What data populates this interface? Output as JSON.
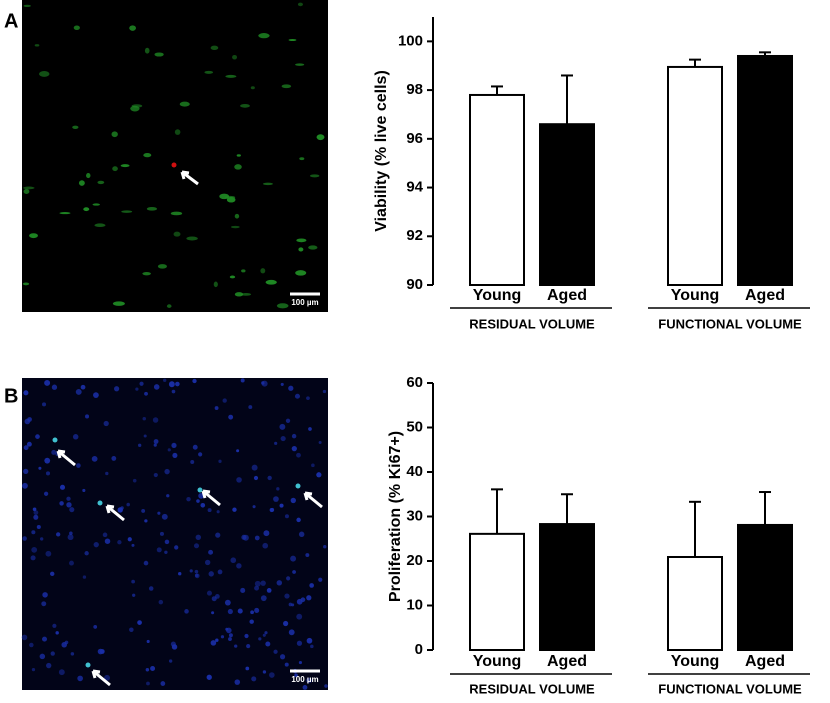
{
  "panels": [
    {
      "label": "A",
      "scale_bar": "100 µm"
    },
    {
      "label": "B",
      "scale_bar": "100 µm"
    }
  ],
  "chart_data": [
    {
      "type": "bar",
      "y_label": "Viability (% live cells)",
      "categories": [
        "RESIDUAL VOLUME",
        "FUNCTIONAL VOLUME"
      ],
      "series": [
        {
          "name": "Young",
          "color": "#ffffff",
          "values": [
            97.8,
            98.95
          ],
          "errors": [
            0.35,
            0.3
          ]
        },
        {
          "name": "Aged",
          "color": "#000000",
          "values": [
            96.6,
            99.4
          ],
          "errors": [
            2.0,
            0.15
          ]
        }
      ],
      "ylim": [
        90,
        101
      ],
      "yticks": [
        90,
        92,
        94,
        96,
        98,
        100
      ]
    },
    {
      "type": "bar",
      "y_label": "Proliferation (% Ki67+)",
      "categories": [
        "RESIDUAL VOLUME",
        "FUNCTIONAL VOLUME"
      ],
      "series": [
        {
          "name": "Young",
          "color": "#ffffff",
          "values": [
            26.1,
            20.9
          ],
          "errors": [
            10,
            12.4
          ]
        },
        {
          "name": "Aged",
          "color": "#000000",
          "values": [
            28.3,
            28.1
          ],
          "errors": [
            6.7,
            7.4
          ]
        }
      ],
      "ylim": [
        0,
        60
      ],
      "yticks": [
        0,
        10,
        20,
        30,
        40,
        50,
        60
      ]
    }
  ]
}
